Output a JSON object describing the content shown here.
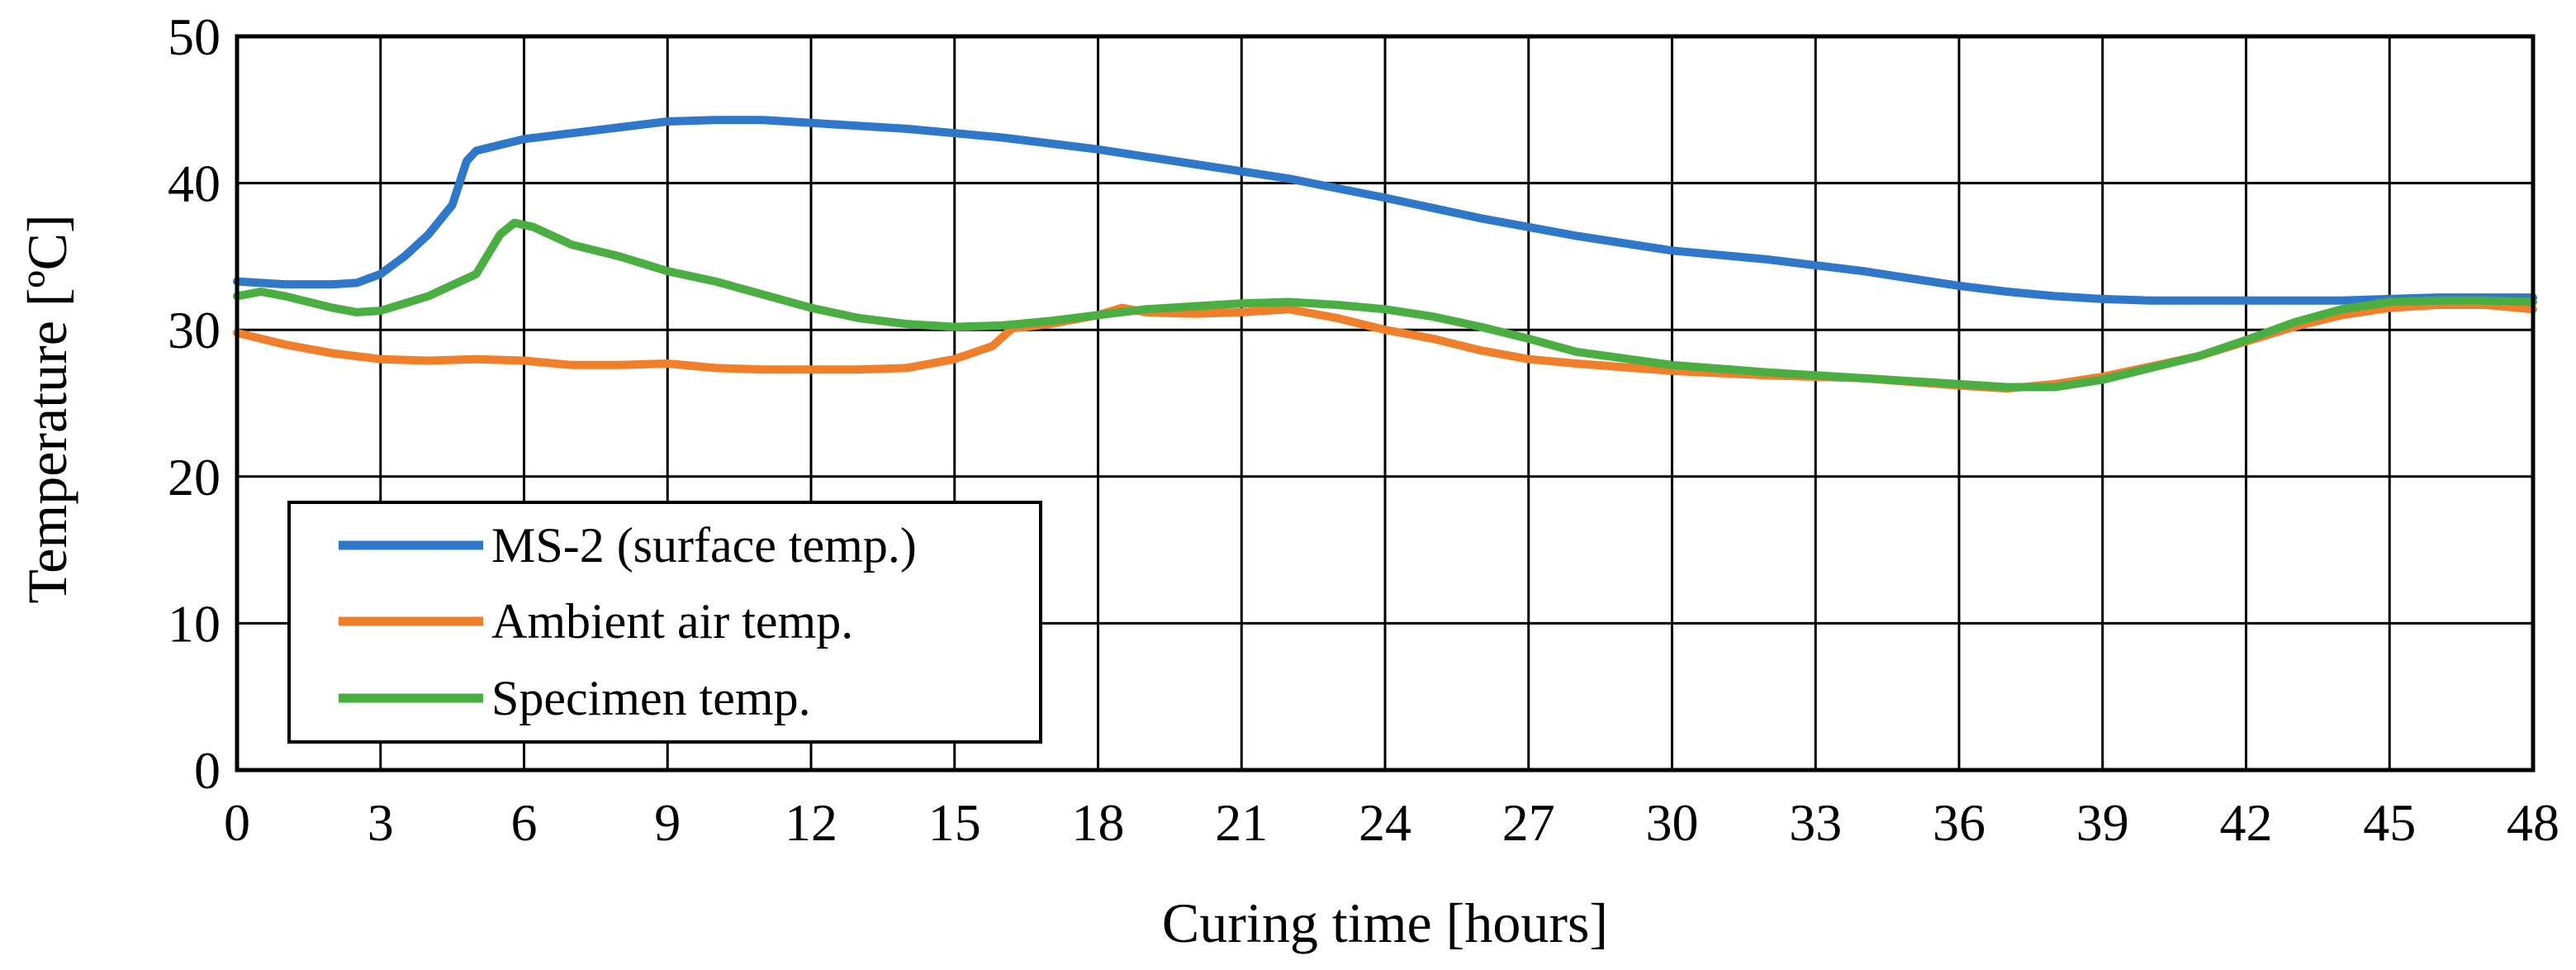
{
  "chart_data": {
    "type": "line",
    "title": "",
    "xlabel": "Curing time [hours]",
    "ylabel": "Temperature [ºC]",
    "xlim": [
      0,
      48
    ],
    "ylim": [
      0,
      50
    ],
    "xticks": [
      0,
      3,
      6,
      9,
      12,
      15,
      18,
      21,
      24,
      27,
      30,
      33,
      36,
      39,
      42,
      45,
      48
    ],
    "yticks": [
      0,
      10,
      20,
      30,
      40,
      50
    ],
    "grid": true,
    "legend_position": "bottom-left",
    "series": [
      {
        "name": "MS-2 (surface temp.)",
        "color": "#2f77c9",
        "x": [
          0,
          1,
          2,
          2.5,
          3,
          3.5,
          4,
          4.5,
          4.8,
          5,
          5.5,
          6,
          7,
          8,
          9,
          10,
          11,
          12,
          14,
          16,
          18,
          20,
          22,
          24,
          26,
          28,
          30,
          32,
          34,
          36,
          37,
          38,
          39,
          40,
          41,
          42,
          43,
          44,
          45,
          46,
          47,
          48
        ],
        "values": [
          33.3,
          33.1,
          33.1,
          33.2,
          33.8,
          35,
          36.5,
          38.5,
          41.5,
          42.2,
          42.6,
          43,
          43.4,
          43.8,
          44.2,
          44.3,
          44.3,
          44.1,
          43.7,
          43.1,
          42.3,
          41.3,
          40.3,
          39,
          37.6,
          36.4,
          35.4,
          34.8,
          34,
          33,
          32.6,
          32.3,
          32.1,
          32,
          32,
          32,
          32,
          32,
          32.1,
          32.2,
          32.2,
          32.2
        ]
      },
      {
        "name": "Ambient air temp.",
        "color": "#f07f2c",
        "x": [
          0,
          1,
          2,
          3,
          4,
          5,
          6,
          7,
          8,
          9,
          10,
          11,
          12,
          13,
          14,
          15,
          15.8,
          16.2,
          17,
          18,
          18.5,
          19,
          20,
          21,
          22,
          23,
          24,
          25,
          26,
          27,
          28,
          30,
          32,
          34,
          36,
          37,
          38,
          39,
          40,
          41,
          42,
          43,
          44,
          45,
          46,
          47,
          48
        ],
        "values": [
          29.8,
          29,
          28.4,
          28,
          27.9,
          28,
          27.9,
          27.6,
          27.6,
          27.7,
          27.4,
          27.3,
          27.3,
          27.3,
          27.4,
          28,
          28.9,
          30.1,
          30.4,
          31,
          31.5,
          31.2,
          31.1,
          31.2,
          31.4,
          30.8,
          30,
          29.4,
          28.6,
          28,
          27.7,
          27.2,
          26.9,
          26.7,
          26.2,
          26,
          26.3,
          26.8,
          27.5,
          28.2,
          29.2,
          30.2,
          31,
          31.5,
          31.7,
          31.7,
          31.4
        ]
      },
      {
        "name": "Specimen temp.",
        "color": "#4aae43",
        "x": [
          0,
          0.5,
          1,
          2,
          2.5,
          3,
          4,
          5,
          5.5,
          5.8,
          6.2,
          7,
          8,
          9,
          10,
          11,
          12,
          13,
          14,
          15,
          16,
          17,
          18,
          19,
          20,
          21,
          22,
          23,
          24,
          25,
          26,
          27,
          28,
          30,
          32,
          34,
          36,
          37,
          38,
          39,
          40,
          41,
          42,
          43,
          44,
          45,
          46,
          47,
          48
        ],
        "values": [
          32.3,
          32.6,
          32.3,
          31.5,
          31.2,
          31.3,
          32.3,
          33.8,
          36.5,
          37.3,
          37,
          35.8,
          35,
          34,
          33.3,
          32.4,
          31.5,
          30.8,
          30.4,
          30.2,
          30.3,
          30.6,
          31,
          31.4,
          31.6,
          31.8,
          31.9,
          31.7,
          31.4,
          30.9,
          30.2,
          29.4,
          28.5,
          27.6,
          27.1,
          26.7,
          26.3,
          26.1,
          26.1,
          26.6,
          27.4,
          28.2,
          29.3,
          30.5,
          31.4,
          31.9,
          32,
          32,
          31.9
        ]
      }
    ]
  }
}
